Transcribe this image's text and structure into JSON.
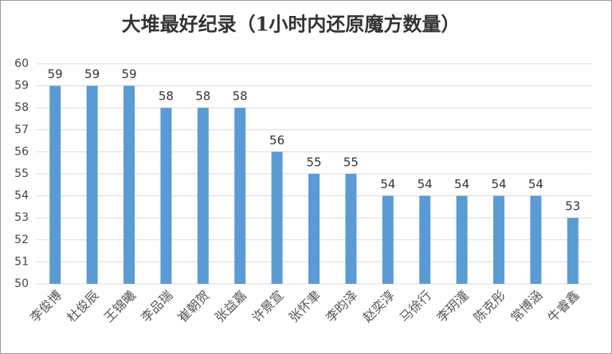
{
  "chart_data": {
    "type": "bar",
    "title": "大堆最好纪录（1小时内还原魔方数量）",
    "categories": [
      "李俊博",
      "杜俊辰",
      "王锦曦",
      "李品瑞",
      "崔朝贺",
      "张益嘉",
      "许景宣",
      "张怀聿",
      "李昀泽",
      "赵奕淳",
      "马徐行",
      "李玥潼",
      "陈克彤",
      "常博涵",
      "牛睿鑫"
    ],
    "values": [
      59,
      59,
      59,
      58,
      58,
      58,
      56,
      55,
      55,
      54,
      54,
      54,
      54,
      54,
      53
    ],
    "color": "#5b9bd5",
    "ylim": [
      50,
      60
    ],
    "yticks": [
      50,
      51,
      52,
      53,
      54,
      55,
      56,
      57,
      58,
      59,
      60
    ],
    "grid": true
  }
}
